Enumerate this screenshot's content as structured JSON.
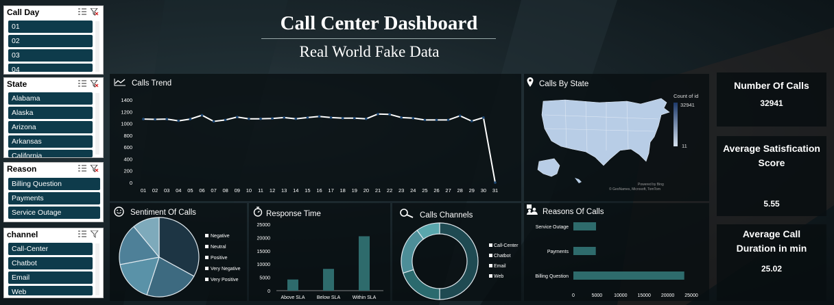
{
  "title": "Call Center Dashboard",
  "subtitle": "Real World Fake Data",
  "slicers": {
    "call_day": {
      "title": "Call Day",
      "items": [
        "01",
        "02",
        "03",
        "04"
      ]
    },
    "state": {
      "title": "State",
      "items": [
        "Alabama",
        "Alaska",
        "Arizona",
        "Arkansas",
        "California"
      ]
    },
    "reason": {
      "title": "Reason",
      "items": [
        "Billing Question",
        "Payments",
        "Service Outage"
      ]
    },
    "channel": {
      "title": "channel",
      "items": [
        "Call-Center",
        "Chatbot",
        "Email",
        "Web"
      ]
    }
  },
  "panels": {
    "calls_trend": "Calls Trend",
    "calls_by_state": "Calls By State",
    "sentiment": "Sentiment Of  Calls",
    "response_time": "Response Time",
    "channels": "Calls Channels",
    "reasons": "Reasons Of Calls"
  },
  "map": {
    "legend_title": "Count of id",
    "legend_max": "32941",
    "legend_min": "11",
    "credit_line1": "Powered by Bing",
    "credit_line2": "© GeoNames, Microsoft, TomTom"
  },
  "kpis": {
    "number_of_calls": {
      "title": "Number Of Calls",
      "value": "32941"
    },
    "avg_satisfaction": {
      "title": "Average Satisfication Score",
      "value": "5.55"
    },
    "avg_duration": {
      "title": "Average Call Duration in min",
      "value": "25.02"
    }
  },
  "icons": {
    "trend": "line-chart-icon",
    "state": "map-pin-icon",
    "sentiment": "smiley-icon",
    "response": "stopwatch-icon",
    "channels": "magnifier-icon",
    "reasons": "people-icon"
  },
  "colors": {
    "slicer_item": "#0e3b4b",
    "line": "#ffffff",
    "marker": "#1e4a78",
    "bar_teal": "#2e6b6c",
    "map_fill": "#b8cde6"
  },
  "chart_data": [
    {
      "type": "line",
      "title": "Calls Trend",
      "x": [
        "01",
        "02",
        "03",
        "04",
        "05",
        "06",
        "07",
        "08",
        "09",
        "10",
        "11",
        "12",
        "13",
        "14",
        "15",
        "16",
        "17",
        "18",
        "19",
        "20",
        "21",
        "22",
        "23",
        "24",
        "25",
        "26",
        "27",
        "28",
        "29",
        "30",
        "31"
      ],
      "series": [
        {
          "values": [
            1075,
            1070,
            1075,
            1045,
            1075,
            1140,
            1035,
            1060,
            1110,
            1080,
            1080,
            1085,
            1100,
            1080,
            1100,
            1120,
            1100,
            1090,
            1090,
            1080,
            1160,
            1155,
            1100,
            1090,
            1060,
            1060,
            1060,
            1130,
            1040,
            1100,
            0
          ]
        }
      ],
      "yticks": [
        "0",
        "200",
        "400",
        "600",
        "800",
        "1000",
        "1200",
        "1400"
      ],
      "ylim": [
        0,
        1400
      ]
    },
    {
      "type": "pie",
      "title": "Sentiment Of  Calls",
      "labels": [
        "Negative",
        "Neutral",
        "Positive",
        "Very Negative",
        "Very Positive"
      ],
      "values": [
        33,
        22,
        17,
        17,
        11
      ],
      "colors": [
        "#1d3544",
        "#3d6a80",
        "#5a92a8",
        "#4e8098",
        "#7eaabb"
      ]
    },
    {
      "type": "bar",
      "title": "Response Time",
      "categories": [
        "Above SLA",
        "Below SLA",
        "Within SLA"
      ],
      "values": [
        4200,
        8200,
        20500
      ],
      "yticks": [
        "0",
        "5000",
        "10000",
        "15000",
        "20000",
        "25000"
      ],
      "ylim": [
        0,
        25000
      ]
    },
    {
      "type": "pie",
      "title": "Calls Channels",
      "labels": [
        "Call-Center",
        "Chatbot",
        "Email",
        "Web"
      ],
      "values": [
        50,
        20,
        20,
        10
      ],
      "colors": [
        "#1f4a52",
        "#2b6a6e",
        "#4d8e98",
        "#5aa7ad"
      ]
    },
    {
      "type": "bar",
      "title": "Reasons Of Calls",
      "categories": [
        "Service Outage",
        "Payments",
        "Billing Question"
      ],
      "values": [
        4800,
        4750,
        23500
      ],
      "xticks": [
        "0",
        "5000",
        "10000",
        "15000",
        "20000",
        "25000"
      ],
      "xlim": [
        0,
        25000
      ]
    }
  ]
}
